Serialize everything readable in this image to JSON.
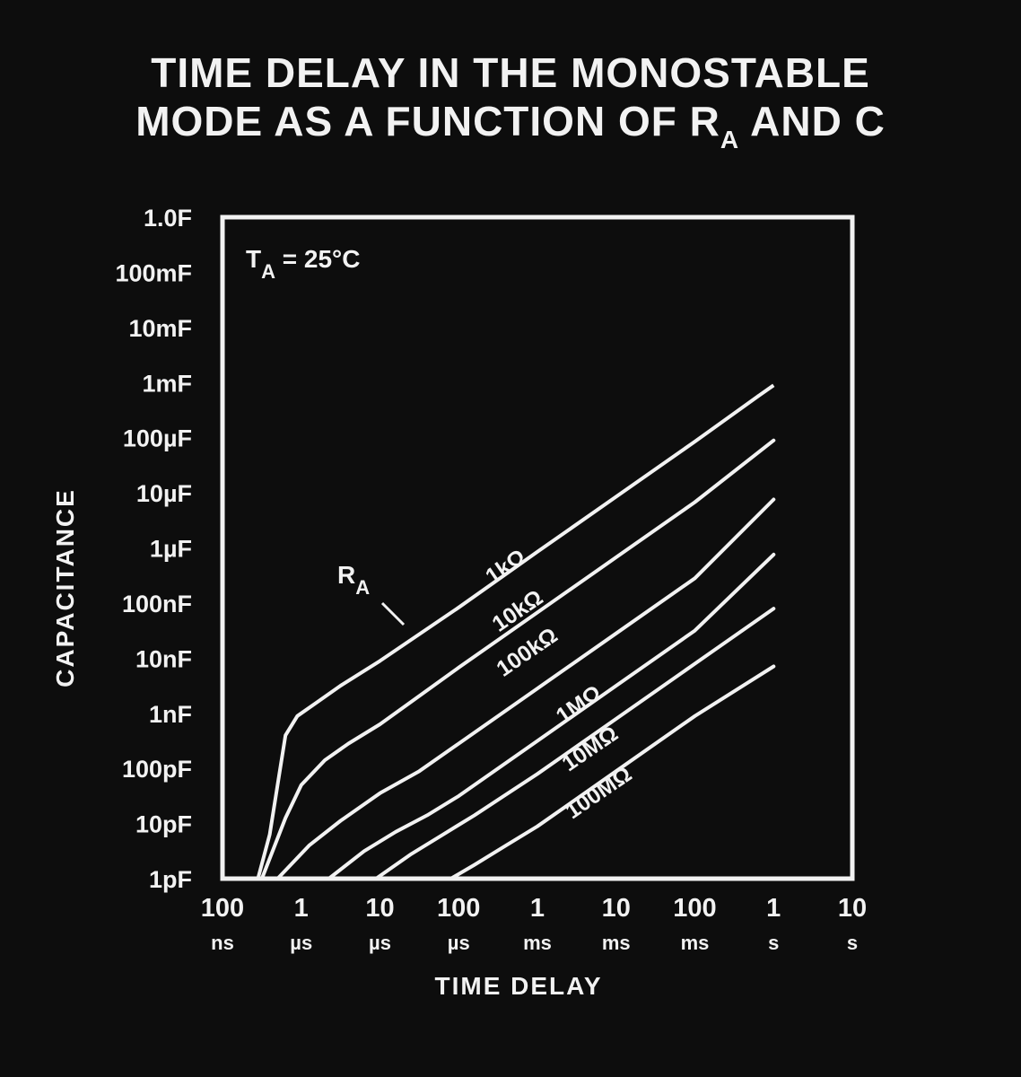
{
  "title": {
    "line1": "TIME DELAY IN THE MONOSTABLE",
    "line2_prefix": "MODE AS A FUNCTION OF R",
    "line2_sub": "A",
    "line2_suffix": " AND C"
  },
  "chart_data": {
    "type": "line",
    "xlabel": "TIME DELAY",
    "ylabel": "CAPACITANCE",
    "x_scale": "log",
    "y_scale": "log",
    "xlim": [
      "100 ns",
      "10 s"
    ],
    "ylim": [
      "1pF",
      "1.0F"
    ],
    "x_ticks": [
      {
        "value": "100",
        "unit": "ns"
      },
      {
        "value": "1",
        "unit": "µs"
      },
      {
        "value": "10",
        "unit": "µs"
      },
      {
        "value": "100",
        "unit": "µs"
      },
      {
        "value": "1",
        "unit": "ms"
      },
      {
        "value": "10",
        "unit": "ms"
      },
      {
        "value": "100",
        "unit": "ms"
      },
      {
        "value": "1",
        "unit": "s"
      },
      {
        "value": "10",
        "unit": "s"
      }
    ],
    "y_ticks": [
      "1.0F",
      "100mF",
      "10mF",
      "1mF",
      "100µF",
      "10µF",
      "1µF",
      "100nF",
      "10nF",
      "1nF",
      "100pF",
      "10pF",
      "1pF"
    ],
    "annotation": {
      "main": "T",
      "sub": "A",
      "rest": " = 25°C"
    },
    "curve_group_label": {
      "main": "R",
      "sub": "A"
    },
    "series": [
      {
        "name": "1kΩ",
        "points": [
          [
            -6.55,
            -12
          ],
          [
            -6.4,
            -11.2
          ],
          [
            -6.3,
            -10.3
          ],
          [
            -6.2,
            -9.4
          ],
          [
            -6.05,
            -9.05
          ],
          [
            -5.8,
            -8.8
          ],
          [
            -5.5,
            -8.5
          ],
          [
            -5.0,
            -8.05
          ],
          [
            -4.0,
            -7.08
          ],
          [
            -3.0,
            -6.07
          ],
          [
            -2.0,
            -5.07
          ],
          [
            -1.0,
            -4.07
          ],
          [
            -0.2,
            -3.25
          ]
        ],
        "dashed_to": [
          0,
          -3.05
        ]
      },
      {
        "name": "10kΩ",
        "points": [
          [
            -6.5,
            -12
          ],
          [
            -6.2,
            -10.9
          ],
          [
            -6.0,
            -10.3
          ],
          [
            -5.7,
            -9.85
          ],
          [
            -5.4,
            -9.55
          ],
          [
            -5.0,
            -9.2
          ],
          [
            -4.0,
            -8.17
          ],
          [
            -3.0,
            -7.17
          ],
          [
            -2.0,
            -6.17
          ],
          [
            -1.0,
            -5.17
          ],
          [
            0,
            -4.05
          ]
        ]
      },
      {
        "name": "100kΩ",
        "points": [
          [
            -6.3,
            -12
          ],
          [
            -5.9,
            -11.4
          ],
          [
            -5.5,
            -10.95
          ],
          [
            -5.0,
            -10.45
          ],
          [
            -4.5,
            -10.05
          ],
          [
            -4.0,
            -9.55
          ],
          [
            -3.0,
            -8.55
          ],
          [
            -2.0,
            -7.55
          ],
          [
            -1.0,
            -6.55
          ],
          [
            0,
            -5.12
          ]
        ]
      },
      {
        "name": "1MΩ",
        "points": [
          [
            -5.65,
            -12
          ],
          [
            -5.2,
            -11.5
          ],
          [
            -4.8,
            -11.15
          ],
          [
            -4.4,
            -10.85
          ],
          [
            -4.0,
            -10.5
          ],
          [
            -3.0,
            -9.5
          ],
          [
            -2.0,
            -8.5
          ],
          [
            -1.0,
            -7.5
          ],
          [
            0,
            -6.12
          ]
        ]
      },
      {
        "name": "10MΩ",
        "points": [
          [
            -5.05,
            -12
          ],
          [
            -4.6,
            -11.55
          ],
          [
            -4.2,
            -11.2
          ],
          [
            -3.8,
            -10.85
          ],
          [
            -3.0,
            -10.1
          ],
          [
            -2.0,
            -9.1
          ],
          [
            -1.0,
            -8.1
          ],
          [
            0,
            -7.1
          ]
        ]
      },
      {
        "name": "100MΩ",
        "points": [
          [
            -4.1,
            -12
          ],
          [
            -3.8,
            -11.75
          ],
          [
            -3.4,
            -11.4
          ],
          [
            -3.0,
            -11.05
          ],
          [
            -2.0,
            -10.05
          ],
          [
            -1.0,
            -9.05
          ],
          [
            0,
            -8.15
          ]
        ]
      }
    ]
  }
}
